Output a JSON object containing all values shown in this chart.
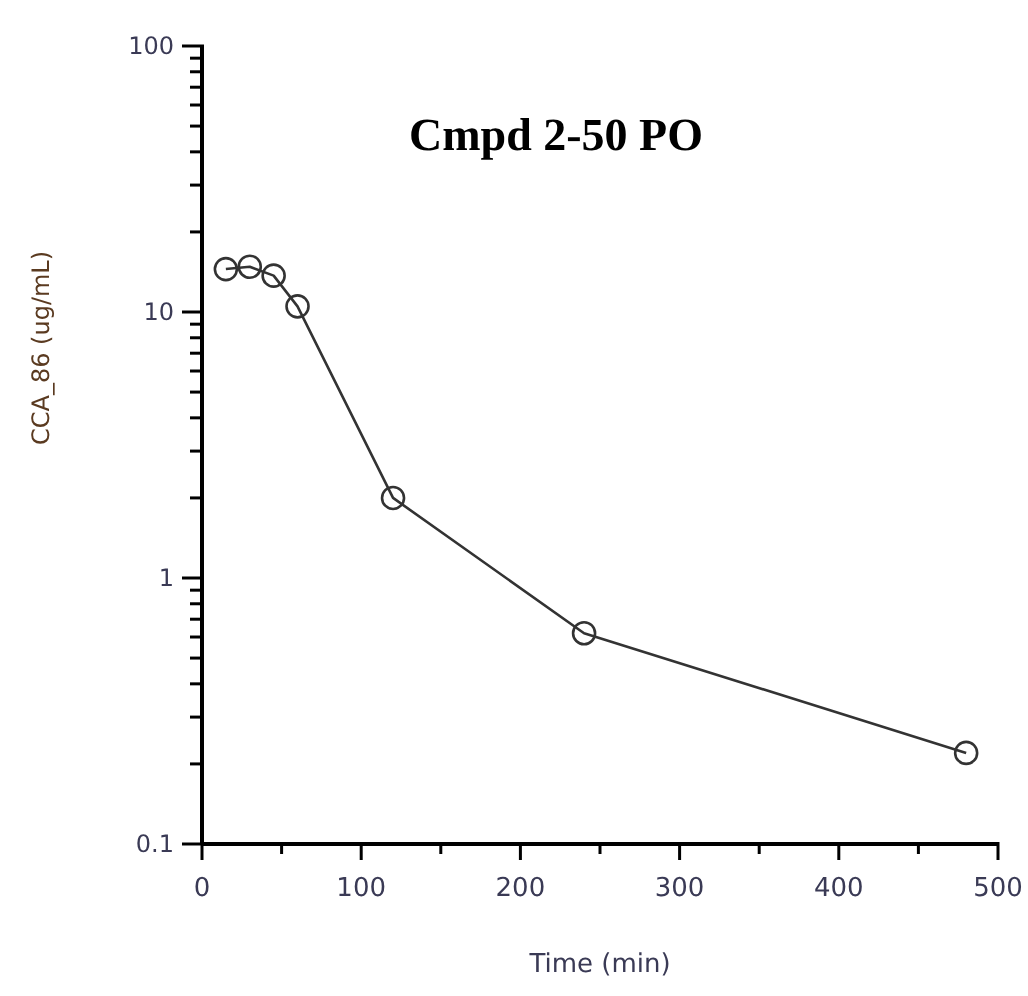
{
  "chart_data": {
    "type": "line",
    "title": "Cmpd 2-50 PO",
    "xlabel": "Time (min)",
    "ylabel": "CCA_86 (ug/mL)",
    "x": [
      15,
      30,
      45,
      60,
      120,
      240,
      480
    ],
    "series": [
      {
        "color": "#333333",
        "values": [
          14.5,
          14.8,
          13.7,
          10.5,
          2.0,
          0.62,
          0.22
        ]
      }
    ],
    "xlim": [
      0,
      500
    ],
    "xticks": [
      0,
      {
        "value": 50,
        "label": null
      },
      100,
      {
        "value": 150,
        "label": null
      },
      200,
      {
        "value": 250,
        "label": null
      },
      300,
      {
        "value": 350,
        "label": null
      },
      400,
      {
        "value": 450,
        "label": null
      },
      500
    ],
    "ylim": [
      0.1,
      100
    ],
    "yticks": [
      0.1,
      {
        "value": 0.2,
        "label": null
      },
      {
        "value": 0.3,
        "label": null
      },
      {
        "value": 0.4,
        "label": null
      },
      {
        "value": 0.5,
        "label": null
      },
      {
        "value": 0.6,
        "label": null
      },
      {
        "value": 0.7,
        "label": null
      },
      {
        "value": 0.8,
        "label": null
      },
      {
        "value": 0.9,
        "label": null
      },
      1,
      {
        "value": 2,
        "label": null
      },
      {
        "value": 3,
        "label": null
      },
      {
        "value": 4,
        "label": null
      },
      {
        "value": 5,
        "label": null
      },
      {
        "value": 6,
        "label": null
      },
      {
        "value": 7,
        "label": null
      },
      {
        "value": 8,
        "label": null
      },
      {
        "value": 9,
        "label": null
      },
      10,
      {
        "value": 20,
        "label": null
      },
      {
        "value": 30,
        "label": null
      },
      {
        "value": 40,
        "label": null
      },
      {
        "value": 50,
        "label": null
      },
      {
        "value": 60,
        "label": null
      },
      {
        "value": 70,
        "label": null
      },
      {
        "value": 80,
        "label": null
      },
      {
        "value": 90,
        "label": null
      },
      100
    ],
    "log": "y",
    "grid": false,
    "legend": false,
    "marker": "circle",
    "line_style": "solid"
  }
}
